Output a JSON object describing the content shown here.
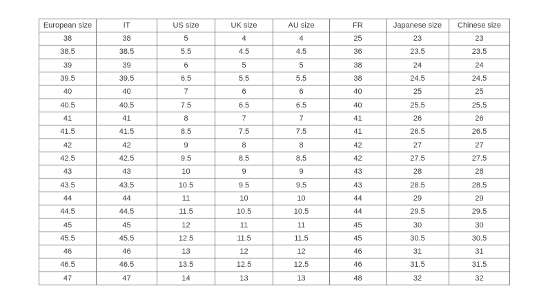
{
  "page": {
    "background_color": "#ffffff"
  },
  "table": {
    "name": "shoe-size-conversion-table",
    "border_color": "#7f7f7f",
    "text_color": "#3c3c3c",
    "headers": [
      "European size",
      "IT",
      "US size",
      "UK size",
      "AU size",
      "FR",
      "Japanese size",
      "Chinese size"
    ],
    "rows": [
      [
        "38",
        "38",
        "5",
        "4",
        "4",
        "25",
        "23",
        "23"
      ],
      [
        "38.5",
        "38.5",
        "5.5",
        "4.5",
        "4.5",
        "36",
        "23.5",
        "23.5"
      ],
      [
        "39",
        "39",
        "6",
        "5",
        "5",
        "38",
        "24",
        "24"
      ],
      [
        "39.5",
        "39.5",
        "6.5",
        "5.5",
        "5.5",
        "38",
        "24.5",
        "24.5"
      ],
      [
        "40",
        "40",
        "7",
        "6",
        "6",
        "40",
        "25",
        "25"
      ],
      [
        "40.5",
        "40.5",
        "7.5",
        "6.5",
        "6.5",
        "40",
        "25.5",
        "25.5"
      ],
      [
        "41",
        "41",
        "8",
        "7",
        "7",
        "41",
        "26",
        "26"
      ],
      [
        "41.5",
        "41.5",
        "8.5",
        "7.5",
        "7.5",
        "41",
        "26.5",
        "26.5"
      ],
      [
        "42",
        "42",
        "9",
        "8",
        "8",
        "42",
        "27",
        "27"
      ],
      [
        "42.5",
        "42.5",
        "9.5",
        "8.5",
        "8.5",
        "42",
        "27.5",
        "27.5"
      ],
      [
        "43",
        "43",
        "10",
        "9",
        "9",
        "43",
        "28",
        "28"
      ],
      [
        "43.5",
        "43.5",
        "10.5",
        "9.5",
        "9.5",
        "43",
        "28.5",
        "28.5"
      ],
      [
        "44",
        "44",
        "11",
        "10",
        "10",
        "44",
        "29",
        "29"
      ],
      [
        "44.5",
        "44.5",
        "11.5",
        "10.5",
        "10.5",
        "44",
        "29.5",
        "29.5"
      ],
      [
        "45",
        "45",
        "12",
        "11",
        "11",
        "45",
        "30",
        "30"
      ],
      [
        "45.5",
        "45.5",
        "12.5",
        "11.5",
        "11.5",
        "45",
        "30.5",
        "30.5"
      ],
      [
        "46",
        "46",
        "13",
        "12",
        "12",
        "46",
        "31",
        "31"
      ],
      [
        "46.5",
        "46.5",
        "13.5",
        "12.5",
        "12.5",
        "46",
        "31.5",
        "31.5"
      ],
      [
        "47",
        "47",
        "14",
        "13",
        "13",
        "48",
        "32",
        "32"
      ]
    ]
  }
}
